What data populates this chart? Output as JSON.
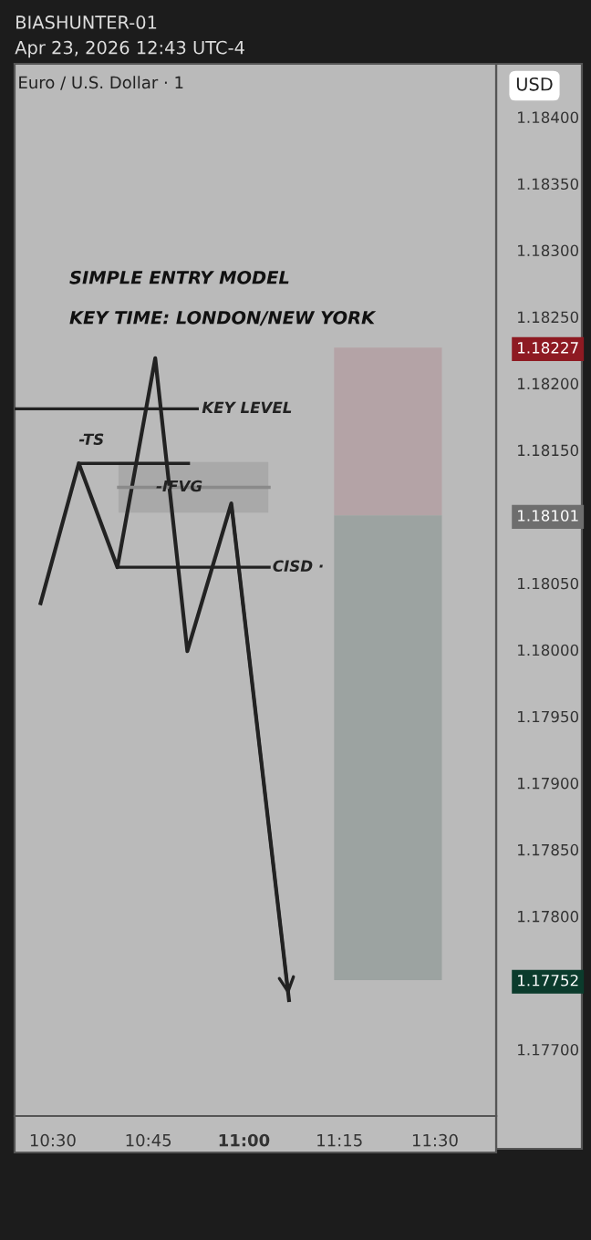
{
  "chart_data": {
    "type": "line",
    "title": "Euro / U.S. Dollar · 1",
    "subtitle": "BIASHUNTER-01\nApr 23, 2026 12:43 UTC-4",
    "ylabel": "USD",
    "xlim": [
      10.4,
      11.66
    ],
    "ylim": [
      1.1765,
      1.1844
    ],
    "xticks": [
      {
        "value": 10.5,
        "label": "10:30"
      },
      {
        "value": 10.75,
        "label": "10:45"
      },
      {
        "value": 11.0,
        "label": "11:00"
      },
      {
        "value": 11.25,
        "label": "11:15"
      },
      {
        "value": 11.5,
        "label": "11:30"
      }
    ],
    "yticks": [
      {
        "value": 1.177,
        "label": "1.17700"
      },
      {
        "value": 1.17752,
        "label": "1.17752"
      },
      {
        "value": 1.178,
        "label": "1.17800"
      },
      {
        "value": 1.1785,
        "label": "1.17850"
      },
      {
        "value": 1.179,
        "label": "1.17900"
      },
      {
        "value": 1.1795,
        "label": "1.17950"
      },
      {
        "value": 1.18,
        "label": "1.18000"
      },
      {
        "value": 1.1805,
        "label": "1.18050"
      },
      {
        "value": 1.18101,
        "label": "1.18101"
      },
      {
        "value": 1.1815,
        "label": "1.18150"
      },
      {
        "value": 1.182,
        "label": "1.18200"
      },
      {
        "value": 1.18227,
        "label": "1.18227"
      },
      {
        "value": 1.1825,
        "label": "1.18250"
      },
      {
        "value": 1.183,
        "label": "1.18300"
      },
      {
        "value": 1.1835,
        "label": "1.18350"
      },
      {
        "value": 1.184,
        "label": "1.18400"
      }
    ],
    "grid": false,
    "marker": "none",
    "series": [
      {
        "type": "bar",
        "color": "#a9a9a9",
        "x": [
          10.868
        ],
        "base": [
          1.18103
        ],
        "values": [
          0.00038
        ]
      },
      {
        "type": "bar",
        "color": "#b4a3a6",
        "x": [
          11.377
        ],
        "base": [
          1.18101
        ],
        "values": [
          0.00126
        ]
      },
      {
        "type": "bar",
        "color": "#9ca3a1",
        "x": [
          11.377
        ],
        "base": [
          1.17752
        ],
        "values": [
          0.00349
        ]
      },
      {
        "color": "#222222",
        "x": [
          10.468,
          10.568,
          10.669,
          10.768,
          10.852,
          10.967,
          11.118
        ],
        "values": [
          1.18035,
          1.1814,
          1.18062,
          1.18219,
          1.17999,
          1.1811,
          1.17737
        ]
      },
      {
        "color": "#222222",
        "x": [
          10.4,
          10.878
        ],
        "values": [
          1.18181,
          1.18181
        ]
      },
      {
        "color": "#222222",
        "x": [
          10.568,
          10.855
        ],
        "values": [
          1.1814,
          1.1814
        ]
      },
      {
        "color": "#222222",
        "x": [
          10.669,
          11.066
        ],
        "values": [
          1.18062,
          1.18062
        ]
      },
      {
        "color": "#8a8a8a",
        "x": [
          10.672,
          11.066
        ],
        "values": [
          1.18122,
          1.18122
        ]
      }
    ],
    "annotations": [
      "SIMPLE ENTRY MODEL",
      "KEY TIME: LONDON/NEW YORK",
      {
        "text": "KEY LEVEL",
        "x": 10.89,
        "y": 1.18181
      },
      {
        "text": "-TS",
        "x": 10.568,
        "y": 1.1814
      },
      {
        "text": "-IFVG",
        "x": 10.77,
        "y": 1.18122
      },
      {
        "text": "CISD ·",
        "x": 11.075,
        "y": 1.18062
      }
    ]
  }
}
